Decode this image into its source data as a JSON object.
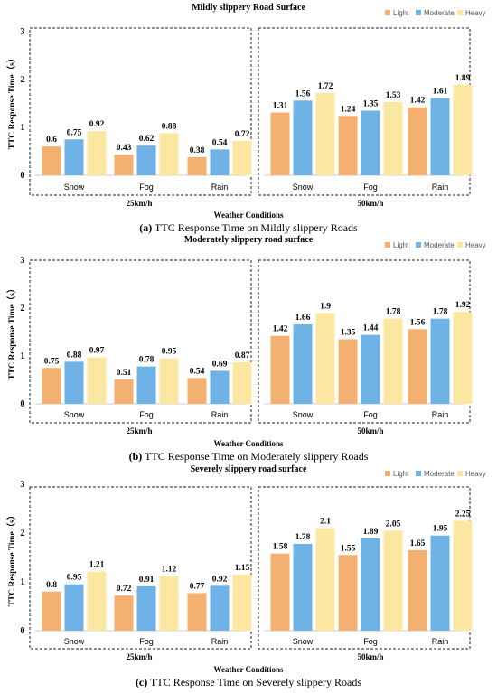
{
  "colors": {
    "Light": "#F3B071",
    "Moderate": "#6FB3E6",
    "Heavy": "#FCE7A0"
  },
  "chart_data": [
    {
      "type": "bar",
      "title": "Mildly slippery Road Surface",
      "caption_letter": "(a)",
      "caption_text": " TTC Response Time on Mildly slippery Roads",
      "xlabel": "Weather Conditions",
      "ylabel": "TTC Response Time（s）",
      "ylim": [
        0,
        3
      ],
      "yticks": [
        "0",
        "1",
        "2",
        "3"
      ],
      "legend": [
        "Light",
        "Moderate",
        "Heavy"
      ],
      "legend_position": "top-right",
      "groups": [
        {
          "speed": "25km/h",
          "categories": [
            "Snow",
            "Fog",
            "Rain"
          ],
          "series": [
            {
              "name": "Light",
              "values": [
                0.6,
                0.43,
                0.38
              ]
            },
            {
              "name": "Moderate",
              "values": [
                0.75,
                0.62,
                0.54
              ]
            },
            {
              "name": "Heavy",
              "values": [
                0.92,
                0.88,
                0.72
              ]
            }
          ]
        },
        {
          "speed": "50km/h",
          "categories": [
            "Snow",
            "Fog",
            "Rain"
          ],
          "series": [
            {
              "name": "Light",
              "values": [
                1.31,
                1.24,
                1.42
              ]
            },
            {
              "name": "Moderate",
              "values": [
                1.56,
                1.35,
                1.61
              ]
            },
            {
              "name": "Heavy",
              "values": [
                1.72,
                1.53,
                1.89
              ]
            }
          ]
        }
      ]
    },
    {
      "type": "bar",
      "title": "Moderately slippery road surface",
      "caption_letter": "(b)",
      "caption_text": " TTC Response Time on Moderately slippery Roads",
      "xlabel": "Weather Conditions",
      "ylabel": "TTC Response Time（s）",
      "ylim": [
        0,
        3
      ],
      "yticks": [
        "0",
        "1",
        "2",
        "3"
      ],
      "legend": [
        "Light",
        "Moderate",
        "Heavy"
      ],
      "legend_position": "top-right",
      "groups": [
        {
          "speed": "25km/h",
          "categories": [
            "Snow",
            "Fog",
            "Rain"
          ],
          "series": [
            {
              "name": "Light",
              "values": [
                0.75,
                0.51,
                0.54
              ]
            },
            {
              "name": "Moderate",
              "values": [
                0.88,
                0.78,
                0.69
              ]
            },
            {
              "name": "Heavy",
              "values": [
                0.97,
                0.95,
                0.87
              ]
            }
          ]
        },
        {
          "speed": "50km/h",
          "categories": [
            "Snow",
            "Fog",
            "Rain"
          ],
          "series": [
            {
              "name": "Light",
              "values": [
                1.42,
                1.35,
                1.56
              ]
            },
            {
              "name": "Moderate",
              "values": [
                1.66,
                1.44,
                1.78
              ]
            },
            {
              "name": "Heavy",
              "values": [
                1.9,
                1.78,
                1.92
              ]
            }
          ]
        }
      ]
    },
    {
      "type": "bar",
      "title": "Severely slippery road surface",
      "caption_letter": "(c)",
      "caption_text": " TTC Response Time on Severely slippery Roads",
      "xlabel": "Weather Conditions",
      "ylabel": "TTC Response Time（s）",
      "ylim": [
        0,
        3
      ],
      "yticks": [
        "0",
        "1",
        "2",
        "3"
      ],
      "legend": [
        "Light",
        "Moderate",
        "Heavy"
      ],
      "legend_position": "top-right",
      "groups": [
        {
          "speed": "25km/h",
          "categories": [
            "Snow",
            "Fog",
            "Rain"
          ],
          "series": [
            {
              "name": "Light",
              "values": [
                0.8,
                0.72,
                0.77
              ]
            },
            {
              "name": "Moderate",
              "values": [
                0.95,
                0.91,
                0.92
              ]
            },
            {
              "name": "Heavy",
              "values": [
                1.21,
                1.12,
                1.15
              ]
            }
          ]
        },
        {
          "speed": "50km/h",
          "categories": [
            "Snow",
            "Fog",
            "Rain"
          ],
          "series": [
            {
              "name": "Light",
              "values": [
                1.58,
                1.55,
                1.65
              ]
            },
            {
              "name": "Moderate",
              "values": [
                1.78,
                1.89,
                1.95
              ]
            },
            {
              "name": "Heavy",
              "values": [
                2.1,
                2.05,
                2.25
              ]
            }
          ]
        }
      ]
    }
  ]
}
